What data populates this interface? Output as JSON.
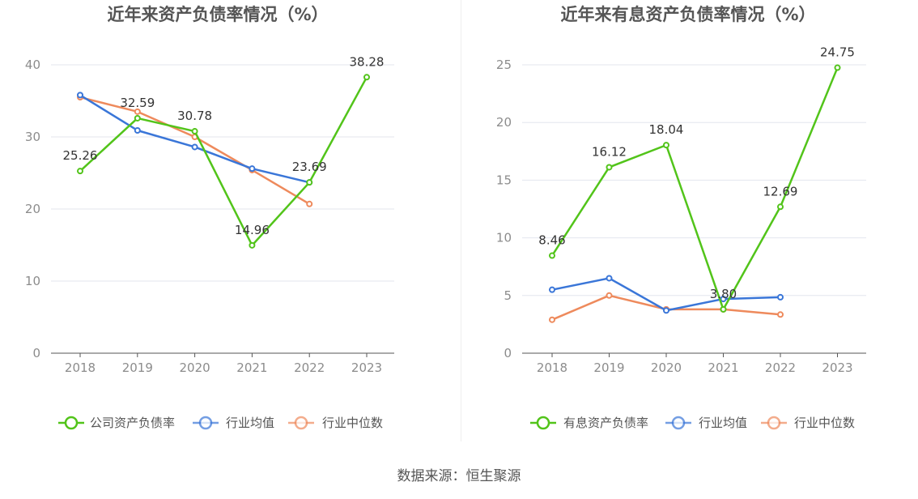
{
  "source_label": "数据来源：恒生聚源",
  "colors": {
    "company": "#52c41a",
    "industry_mean": "#3a76d8",
    "industry_median": "#ee8a5c",
    "axis": "#555555",
    "tick_text": "#8c8c8c",
    "grid": "#e3e6ee",
    "title": "#555555",
    "label": "#333333"
  },
  "chart_data": [
    {
      "type": "line",
      "title": "近年来资产负债率情况（%）",
      "categories": [
        "2018",
        "2019",
        "2020",
        "2021",
        "2022",
        "2023"
      ],
      "ylim": [
        0,
        40
      ],
      "yticks": [
        0,
        10,
        20,
        30,
        40
      ],
      "grid": true,
      "legend_position": "bottom",
      "series": [
        {
          "name": "公司资产负债率",
          "color_key": "company",
          "values": [
            25.26,
            32.59,
            30.78,
            14.96,
            23.69,
            38.28
          ],
          "labels": [
            "25.26",
            "32.59",
            "30.78",
            "14.96",
            "23.69",
            "38.28"
          ]
        },
        {
          "name": "行业均值",
          "color_key": "industry_mean",
          "values": [
            35.8,
            30.9,
            28.6,
            25.6,
            23.69,
            null
          ]
        },
        {
          "name": "行业中位数",
          "color_key": "industry_median",
          "values": [
            35.5,
            33.5,
            30.0,
            25.4,
            20.7,
            null
          ]
        }
      ]
    },
    {
      "type": "line",
      "title": "近年来有息资产负债率情况（%）",
      "categories": [
        "2018",
        "2019",
        "2020",
        "2021",
        "2022",
        "2023"
      ],
      "ylim": [
        0,
        25
      ],
      "yticks": [
        0,
        5,
        10,
        15,
        20,
        25
      ],
      "grid": true,
      "legend_position": "bottom",
      "series": [
        {
          "name": "有息资产负债率",
          "color_key": "company",
          "values": [
            8.46,
            16.12,
            18.04,
            3.8,
            12.69,
            24.75
          ],
          "labels": [
            "8.46",
            "16.12",
            "18.04",
            "3.80",
            "12.69",
            "24.75"
          ]
        },
        {
          "name": "行业均值",
          "color_key": "industry_mean",
          "values": [
            5.5,
            6.5,
            3.7,
            4.7,
            4.85,
            null
          ]
        },
        {
          "name": "行业中位数",
          "color_key": "industry_median",
          "values": [
            2.9,
            5.0,
            3.8,
            3.8,
            3.35,
            null
          ]
        }
      ]
    }
  ]
}
